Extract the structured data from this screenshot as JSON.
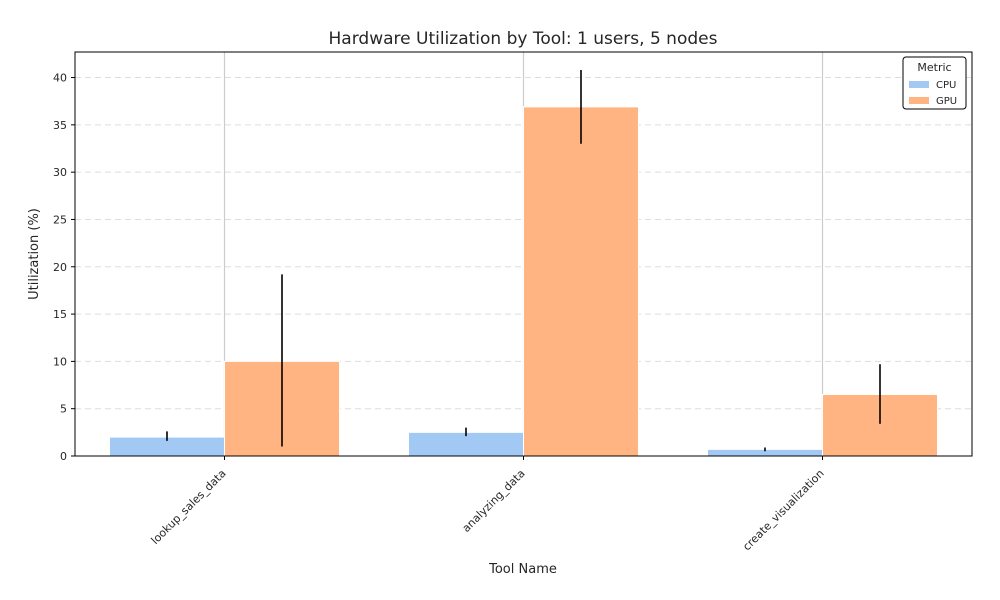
{
  "chart_data": {
    "type": "bar",
    "title": "Hardware Utilization by Tool: 1 users, 5 nodes",
    "xlabel": "Tool Name",
    "ylabel": "Utilization (%)",
    "categories": [
      "lookup_sales_data",
      "analyzing_data",
      "create_visualization"
    ],
    "series": [
      {
        "name": "CPU",
        "values": [
          2.0,
          2.5,
          0.7
        ],
        "error_low": [
          1.6,
          2.1,
          0.5
        ],
        "error_high": [
          2.6,
          3.0,
          0.9
        ]
      },
      {
        "name": "GPU",
        "values": [
          10.0,
          36.9,
          6.5
        ],
        "error_low": [
          1.0,
          33.0,
          3.4
        ],
        "error_high": [
          19.2,
          40.8,
          9.7
        ]
      }
    ],
    "ylim": [
      0,
      42.7
    ],
    "yticks": [
      0,
      5,
      10,
      15,
      20,
      25,
      30,
      35,
      40
    ],
    "grid": "y-dashed",
    "legend": {
      "title": "Metric",
      "position": "top-right"
    },
    "colors": {
      "CPU": "#a1c9f4",
      "GPU": "#ffb482",
      "error_bar": "#000000",
      "grid": "#dddddd",
      "axes": "#000000"
    }
  }
}
